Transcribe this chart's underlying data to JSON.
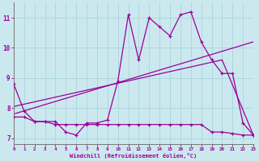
{
  "bg_color": "#cce8ef",
  "line_color": "#990099",
  "grid_color": "#aad4dc",
  "xlabel": "Windchill (Refroidissement éolien,°C)",
  "ylabel_ticks": [
    7,
    8,
    9,
    10,
    11
  ],
  "xtick_labels": [
    "0",
    "1",
    "2",
    "3",
    "4",
    "5",
    "6",
    "7",
    "8",
    "9",
    "10",
    "11",
    "12",
    "13",
    "14",
    "15",
    "16",
    "17",
    "18",
    "19",
    "20",
    "21",
    "22",
    "23"
  ],
  "xlim": [
    0,
    23
  ],
  "ylim": [
    6.8,
    11.5
  ],
  "series1_x": [
    0,
    1,
    2,
    3,
    4,
    5,
    6,
    7,
    8,
    9,
    10,
    11,
    12,
    13,
    14,
    15,
    16,
    17,
    18,
    19,
    20,
    21,
    22,
    23
  ],
  "series1_y": [
    8.8,
    7.9,
    7.55,
    7.55,
    7.55,
    7.2,
    7.1,
    7.5,
    7.5,
    7.6,
    8.9,
    11.1,
    9.6,
    11.0,
    10.7,
    10.4,
    11.1,
    11.2,
    10.2,
    9.6,
    9.15,
    9.15,
    7.5,
    7.1
  ],
  "series2_x": [
    0,
    1,
    2,
    3,
    4,
    5,
    6,
    7,
    8,
    9,
    10,
    11,
    12,
    13,
    14,
    15,
    16,
    17,
    18,
    19,
    20,
    21,
    22,
    23
  ],
  "series2_y": [
    7.7,
    7.7,
    7.55,
    7.55,
    7.45,
    7.45,
    7.45,
    7.45,
    7.45,
    7.45,
    7.45,
    7.45,
    7.45,
    7.45,
    7.45,
    7.45,
    7.45,
    7.45,
    7.45,
    7.2,
    7.2,
    7.15,
    7.1,
    7.1
  ],
  "series3_x": [
    0,
    23
  ],
  "series3_y": [
    7.8,
    10.2
  ],
  "series4_x": [
    0,
    20,
    23
  ],
  "series4_y": [
    8.05,
    9.6,
    7.1
  ]
}
